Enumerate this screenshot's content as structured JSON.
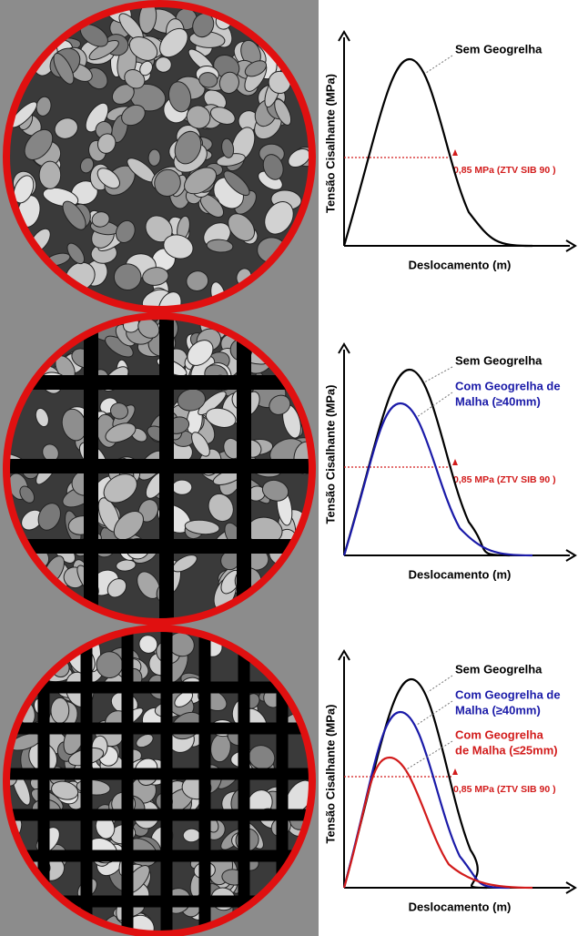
{
  "panels": [
    {
      "y_axis_label": "Tensão Cisalhante (MPa)",
      "x_axis_label": "Deslocamento (m)",
      "threshold_label": "0,85 MPa (ZTV SIB 90 )",
      "curves": [
        {
          "label": [
            "Sem Geogrelha"
          ]
        }
      ]
    },
    {
      "y_axis_label": "Tensão Cisalhante (MPa)",
      "x_axis_label": "Deslocamento (m)",
      "threshold_label": "0,85 MPa (ZTV SIB 90 )",
      "curves": [
        {
          "label": [
            "Sem Geogrelha"
          ]
        },
        {
          "label": [
            "Com Geogrelha de",
            "Malha (≥40mm)"
          ]
        }
      ]
    },
    {
      "y_axis_label": "Tensão Cisalhante (MPa)",
      "x_axis_label": "Deslocamento (m)",
      "threshold_label": "0,85 MPa (ZTV SIB 90 )",
      "curves": [
        {
          "label": [
            "Sem Geogrelha"
          ]
        },
        {
          "label": [
            "Com Geogrelha de",
            "Malha (≥40mm)"
          ]
        },
        {
          "label": [
            "Com Geogrelha",
            "de Malha (≤25mm)"
          ]
        }
      ]
    }
  ]
}
